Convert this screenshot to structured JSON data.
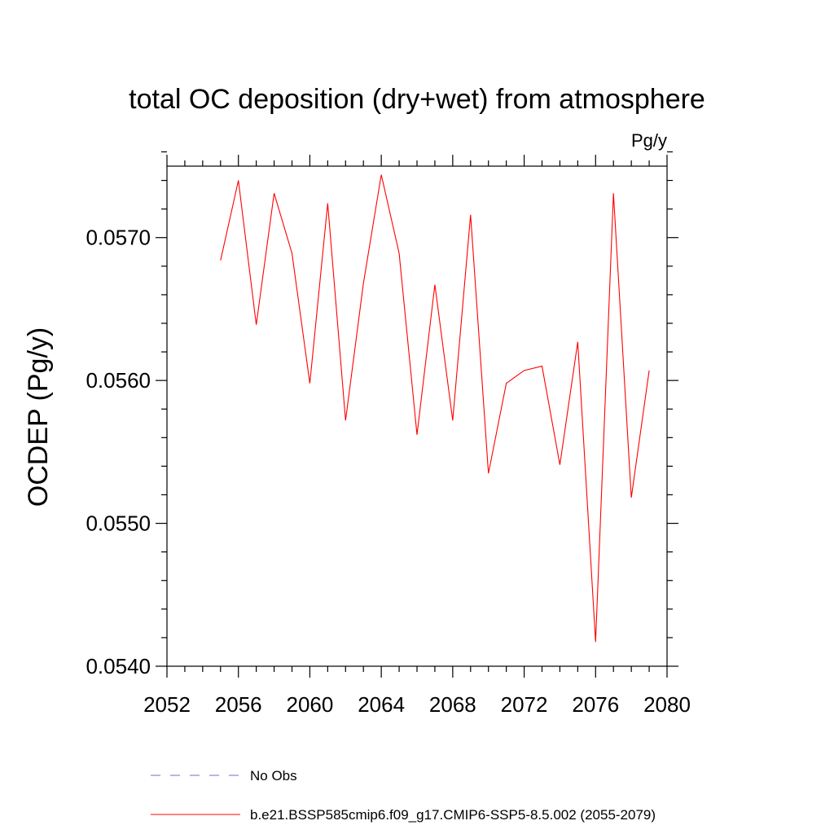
{
  "chart_data": {
    "type": "line",
    "title": "total OC deposition (dry+wet) from atmosphere",
    "units_label": "Pg/y",
    "xlabel": "",
    "ylabel": "OCDEP  (Pg/y)",
    "xlim": [
      2052,
      2080
    ],
    "ylim": [
      0.054,
      0.0575
    ],
    "x_major_ticks": [
      2052,
      2056,
      2060,
      2064,
      2068,
      2072,
      2076,
      2080
    ],
    "x_tick_labels": [
      "2052",
      "2056",
      "2060",
      "2064",
      "2068",
      "2072",
      "2076",
      "2080"
    ],
    "y_major_ticks": [
      0.054,
      0.055,
      0.056,
      0.057
    ],
    "y_tick_labels": [
      "0.0540",
      "0.0550",
      "0.0560",
      "0.0570"
    ],
    "grid": false,
    "series": [
      {
        "name": "b.e21.BSSP585cmip6.f09_g17.CMIP6-SSP5-8.5.002 (2055-2079)",
        "color": "#ff0000",
        "x": [
          2055,
          2056,
          2057,
          2058,
          2059,
          2060,
          2061,
          2062,
          2063,
          2064,
          2065,
          2066,
          2067,
          2068,
          2069,
          2070,
          2071,
          2072,
          2073,
          2074,
          2075,
          2076,
          2077,
          2078,
          2079
        ],
        "values": [
          0.05684,
          0.0574,
          0.05639,
          0.05731,
          0.05689,
          0.05598,
          0.05724,
          0.05572,
          0.05668,
          0.05744,
          0.05689,
          0.05562,
          0.05667,
          0.05572,
          0.05716,
          0.05535,
          0.05598,
          0.05607,
          0.0561,
          0.05541,
          0.05627,
          0.05417,
          0.05731,
          0.05518,
          0.05607
        ]
      }
    ],
    "legend": [
      {
        "label": "No Obs",
        "color": "#7b68c8",
        "style": "dashed"
      },
      {
        "label": "b.e21.BSSP585cmip6.f09_g17.CMIP6-SSP5-8.5.002 (2055-2079)",
        "color": "#ff0000",
        "style": "solid"
      }
    ],
    "legend_position": "bottom"
  }
}
